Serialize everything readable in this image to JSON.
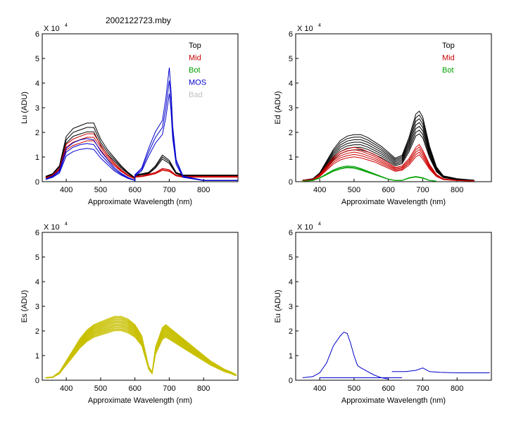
{
  "figure": {
    "title": "2002122723.mby"
  },
  "chart_data": [
    {
      "type": "line",
      "id": "lu",
      "ylabel": "Lu (ADU)",
      "xlabel": "Approximate Wavelength (nm)",
      "exponent_base": "X 10",
      "exponent_power": "4",
      "xlim": [
        330,
        900
      ],
      "ylim": [
        0,
        6
      ],
      "xticks": [
        400,
        500,
        600,
        700,
        800
      ],
      "yticks": [
        0,
        1,
        2,
        3,
        4,
        5,
        6
      ],
      "legend": [
        {
          "label": "Top",
          "color": "#000000"
        },
        {
          "label": "Mid",
          "color": "#cc0000"
        },
        {
          "label": "Bot",
          "color": "#00a000"
        },
        {
          "label": "MOS",
          "color": "#0000cc"
        },
        {
          "label": "Bad",
          "color": "#c0c0c0"
        }
      ],
      "series": [
        {
          "name": "Top",
          "color": "#000000",
          "count": 3,
          "spread": 0.05,
          "x": [
            340,
            360,
            380,
            400,
            420,
            440,
            460,
            480,
            500,
            520,
            540,
            560,
            580,
            600,
            600,
            620,
            640,
            660,
            680,
            700,
            720,
            740,
            800,
            900
          ],
          "y": [
            0.2,
            0.3,
            0.6,
            1.7,
            2.0,
            2.1,
            2.2,
            2.2,
            1.6,
            1.2,
            0.9,
            0.6,
            0.35,
            0.15,
            0.25,
            0.3,
            0.35,
            0.6,
            1.0,
            0.8,
            0.35,
            0.25,
            0.25,
            0.25
          ]
        },
        {
          "name": "Mid",
          "color": "#cc0000",
          "count": 3,
          "spread": 0.05,
          "x": [
            340,
            360,
            380,
            400,
            420,
            440,
            460,
            480,
            500,
            520,
            540,
            560,
            580,
            600,
            600,
            620,
            640,
            660,
            680,
            700,
            720,
            740,
            800,
            900
          ],
          "y": [
            0.15,
            0.25,
            0.5,
            1.4,
            1.6,
            1.7,
            1.8,
            1.8,
            1.4,
            1.0,
            0.7,
            0.45,
            0.25,
            0.12,
            0.2,
            0.22,
            0.28,
            0.35,
            0.5,
            0.45,
            0.25,
            0.2,
            0.2,
            0.2
          ]
        },
        {
          "name": "MOS",
          "color": "#0000cc",
          "count": 3,
          "spread": 0.08,
          "x": [
            340,
            360,
            380,
            400,
            420,
            440,
            460,
            480,
            500,
            520,
            540,
            560,
            580,
            600,
            600,
            620,
            640,
            660,
            680,
            690,
            700,
            705,
            710,
            720,
            740,
            800,
            900
          ],
          "y": [
            0.1,
            0.2,
            0.4,
            1.2,
            1.4,
            1.5,
            1.55,
            1.5,
            1.1,
            0.8,
            0.5,
            0.3,
            0.15,
            0.05,
            0.25,
            0.5,
            1.2,
            1.8,
            2.2,
            3.0,
            4.1,
            3.3,
            2.0,
            0.8,
            0.2,
            0.05,
            0.05
          ]
        }
      ]
    },
    {
      "type": "line",
      "id": "ed",
      "ylabel": "Ed  (ADU)",
      "xlabel": "Approximate Wavelength (nm)",
      "exponent_base": "X 10",
      "exponent_power": "4",
      "xlim": [
        330,
        900
      ],
      "ylim": [
        0,
        6
      ],
      "xticks": [
        400,
        500,
        600,
        700,
        800
      ],
      "yticks": [
        0,
        1,
        2,
        3,
        4,
        5,
        6
      ],
      "legend": [
        {
          "label": "Top",
          "color": "#000000"
        },
        {
          "label": "Mid",
          "color": "#cc0000"
        },
        {
          "label": "Bot",
          "color": "#00a000"
        }
      ],
      "series": [
        {
          "name": "Top",
          "color": "#000000",
          "count": 7,
          "spread": 0.12,
          "x": [
            350,
            380,
            400,
            420,
            440,
            460,
            480,
            500,
            520,
            540,
            560,
            580,
            600,
            620,
            640,
            660,
            680,
            690,
            700,
            720,
            740,
            760,
            800,
            850
          ],
          "y": [
            0.05,
            0.1,
            0.3,
            0.7,
            1.1,
            1.4,
            1.55,
            1.6,
            1.6,
            1.5,
            1.35,
            1.2,
            1.0,
            0.8,
            0.9,
            1.5,
            2.3,
            2.4,
            2.2,
            1.2,
            0.5,
            0.2,
            0.1,
            0.05
          ]
        },
        {
          "name": "Mid",
          "color": "#cc0000",
          "count": 5,
          "spread": 0.1,
          "x": [
            350,
            380,
            400,
            420,
            440,
            460,
            480,
            500,
            520,
            540,
            560,
            580,
            600,
            620,
            640,
            660,
            680,
            690,
            700,
            720,
            740,
            760,
            800,
            850
          ],
          "y": [
            0.05,
            0.08,
            0.25,
            0.55,
            0.85,
            1.05,
            1.15,
            1.2,
            1.15,
            1.05,
            0.95,
            0.8,
            0.65,
            0.5,
            0.55,
            0.8,
            1.2,
            1.3,
            1.1,
            0.6,
            0.25,
            0.1,
            0.05,
            0.03
          ]
        },
        {
          "name": "Bot",
          "color": "#00a000",
          "count": 3,
          "spread": 0.04,
          "x": [
            350,
            380,
            400,
            420,
            440,
            460,
            480,
            500,
            520,
            540,
            560,
            580,
            600,
            620,
            640,
            660,
            680,
            700,
            720,
            740
          ],
          "y": [
            0.02,
            0.05,
            0.15,
            0.3,
            0.45,
            0.55,
            0.6,
            0.58,
            0.5,
            0.4,
            0.3,
            0.2,
            0.1,
            0.05,
            0.05,
            0.15,
            0.2,
            0.15,
            0.05,
            0.02
          ]
        }
      ]
    },
    {
      "type": "line",
      "id": "es",
      "ylabel": "Es  (ADU)",
      "xlabel": "Approximate Wavelength (nm)",
      "exponent_base": "X 10",
      "exponent_power": "4",
      "xlim": [
        330,
        900
      ],
      "ylim": [
        0,
        6
      ],
      "xticks": [
        400,
        500,
        600,
        700,
        800
      ],
      "yticks": [
        0,
        1,
        2,
        3,
        4,
        5,
        6
      ],
      "legend": [],
      "series": [
        {
          "name": "Es",
          "color": "#c8c000",
          "count": 16,
          "spread": 0.08,
          "x": [
            340,
            360,
            380,
            400,
            420,
            440,
            460,
            480,
            500,
            520,
            540,
            560,
            580,
            600,
            620,
            640,
            650,
            660,
            680,
            690,
            700,
            720,
            740,
            760,
            780,
            800,
            820,
            840,
            860,
            880,
            895
          ],
          "y": [
            0.1,
            0.12,
            0.3,
            0.7,
            1.1,
            1.5,
            1.8,
            2.0,
            2.1,
            2.2,
            2.3,
            2.3,
            2.2,
            2.0,
            1.6,
            0.5,
            0.3,
            1.2,
            1.9,
            2.0,
            1.9,
            1.7,
            1.5,
            1.3,
            1.1,
            0.9,
            0.7,
            0.55,
            0.4,
            0.3,
            0.2
          ]
        }
      ]
    },
    {
      "type": "line",
      "id": "eu",
      "ylabel": "Eu  (ADU)",
      "xlabel": "Approximate Wavelength (nm)",
      "exponent_base": "X 10",
      "exponent_power": "4",
      "xlim": [
        330,
        900
      ],
      "ylim": [
        0,
        6
      ],
      "xticks": [
        400,
        500,
        600,
        700,
        800
      ],
      "yticks": [
        0,
        1,
        2,
        3,
        4,
        5,
        6
      ],
      "legend": [],
      "series": [
        {
          "name": "Eu",
          "color": "#0000cc",
          "count": 1,
          "spread": 0,
          "x": [
            350,
            380,
            400,
            420,
            440,
            460,
            470,
            480,
            490,
            500,
            510,
            520,
            540,
            560,
            580,
            600
          ],
          "y": [
            0.1,
            0.15,
            0.3,
            0.7,
            1.4,
            1.8,
            1.95,
            1.9,
            1.5,
            1.0,
            0.6,
            0.5,
            0.35,
            0.2,
            0.1,
            0.05
          ]
        },
        {
          "name": "Eu-low",
          "color": "#0000cc",
          "count": 1,
          "spread": 0,
          "x": [
            400,
            500,
            640
          ],
          "y": [
            0.1,
            0.1,
            0.1
          ]
        },
        {
          "name": "Eu-red",
          "color": "#0000cc",
          "count": 1,
          "spread": 0,
          "x": [
            610,
            650,
            680,
            700,
            720,
            750,
            800,
            850,
            895
          ],
          "y": [
            0.35,
            0.35,
            0.4,
            0.5,
            0.35,
            0.32,
            0.3,
            0.3,
            0.3
          ]
        }
      ]
    }
  ]
}
